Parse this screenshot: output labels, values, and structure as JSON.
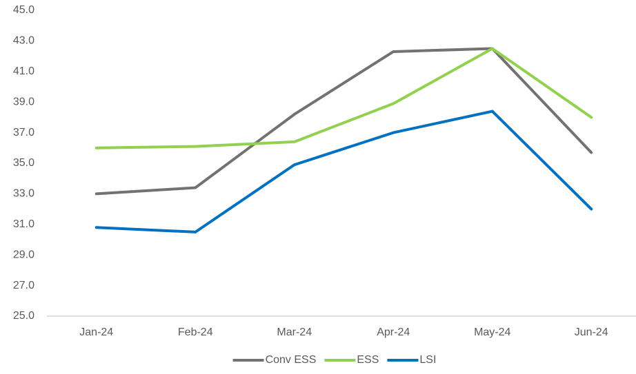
{
  "chart_data": {
    "type": "line",
    "categories": [
      "Jan-24",
      "Feb-24",
      "Mar-24",
      "Apr-24",
      "May-24",
      "Jun-24"
    ],
    "series": [
      {
        "name": "Conv ESS",
        "color": "#767171",
        "values": [
          33.0,
          33.4,
          38.2,
          42.3,
          42.5,
          35.7
        ]
      },
      {
        "name": "ESS",
        "color": "#92d050",
        "values": [
          36.0,
          36.1,
          36.4,
          38.9,
          42.5,
          38.0
        ]
      },
      {
        "name": "LSI",
        "color": "#0070c0",
        "values": [
          30.8,
          30.5,
          34.9,
          37.0,
          38.4,
          32.0
        ]
      }
    ],
    "ylim": [
      25,
      45
    ],
    "yticks": [
      {
        "value": 25,
        "label": "25.0"
      },
      {
        "value": 27,
        "label": "27.0"
      },
      {
        "value": 29,
        "label": "29.0"
      },
      {
        "value": 31,
        "label": "31.0"
      },
      {
        "value": 33,
        "label": "33.0"
      },
      {
        "value": 35,
        "label": "35.0"
      },
      {
        "value": 37,
        "label": "37.0"
      },
      {
        "value": 39,
        "label": "39.0"
      },
      {
        "value": 41,
        "label": "41.0"
      },
      {
        "value": 43,
        "label": "43.0"
      },
      {
        "value": 45,
        "label": "45.0"
      }
    ],
    "grid": false,
    "legend": "bottom"
  }
}
